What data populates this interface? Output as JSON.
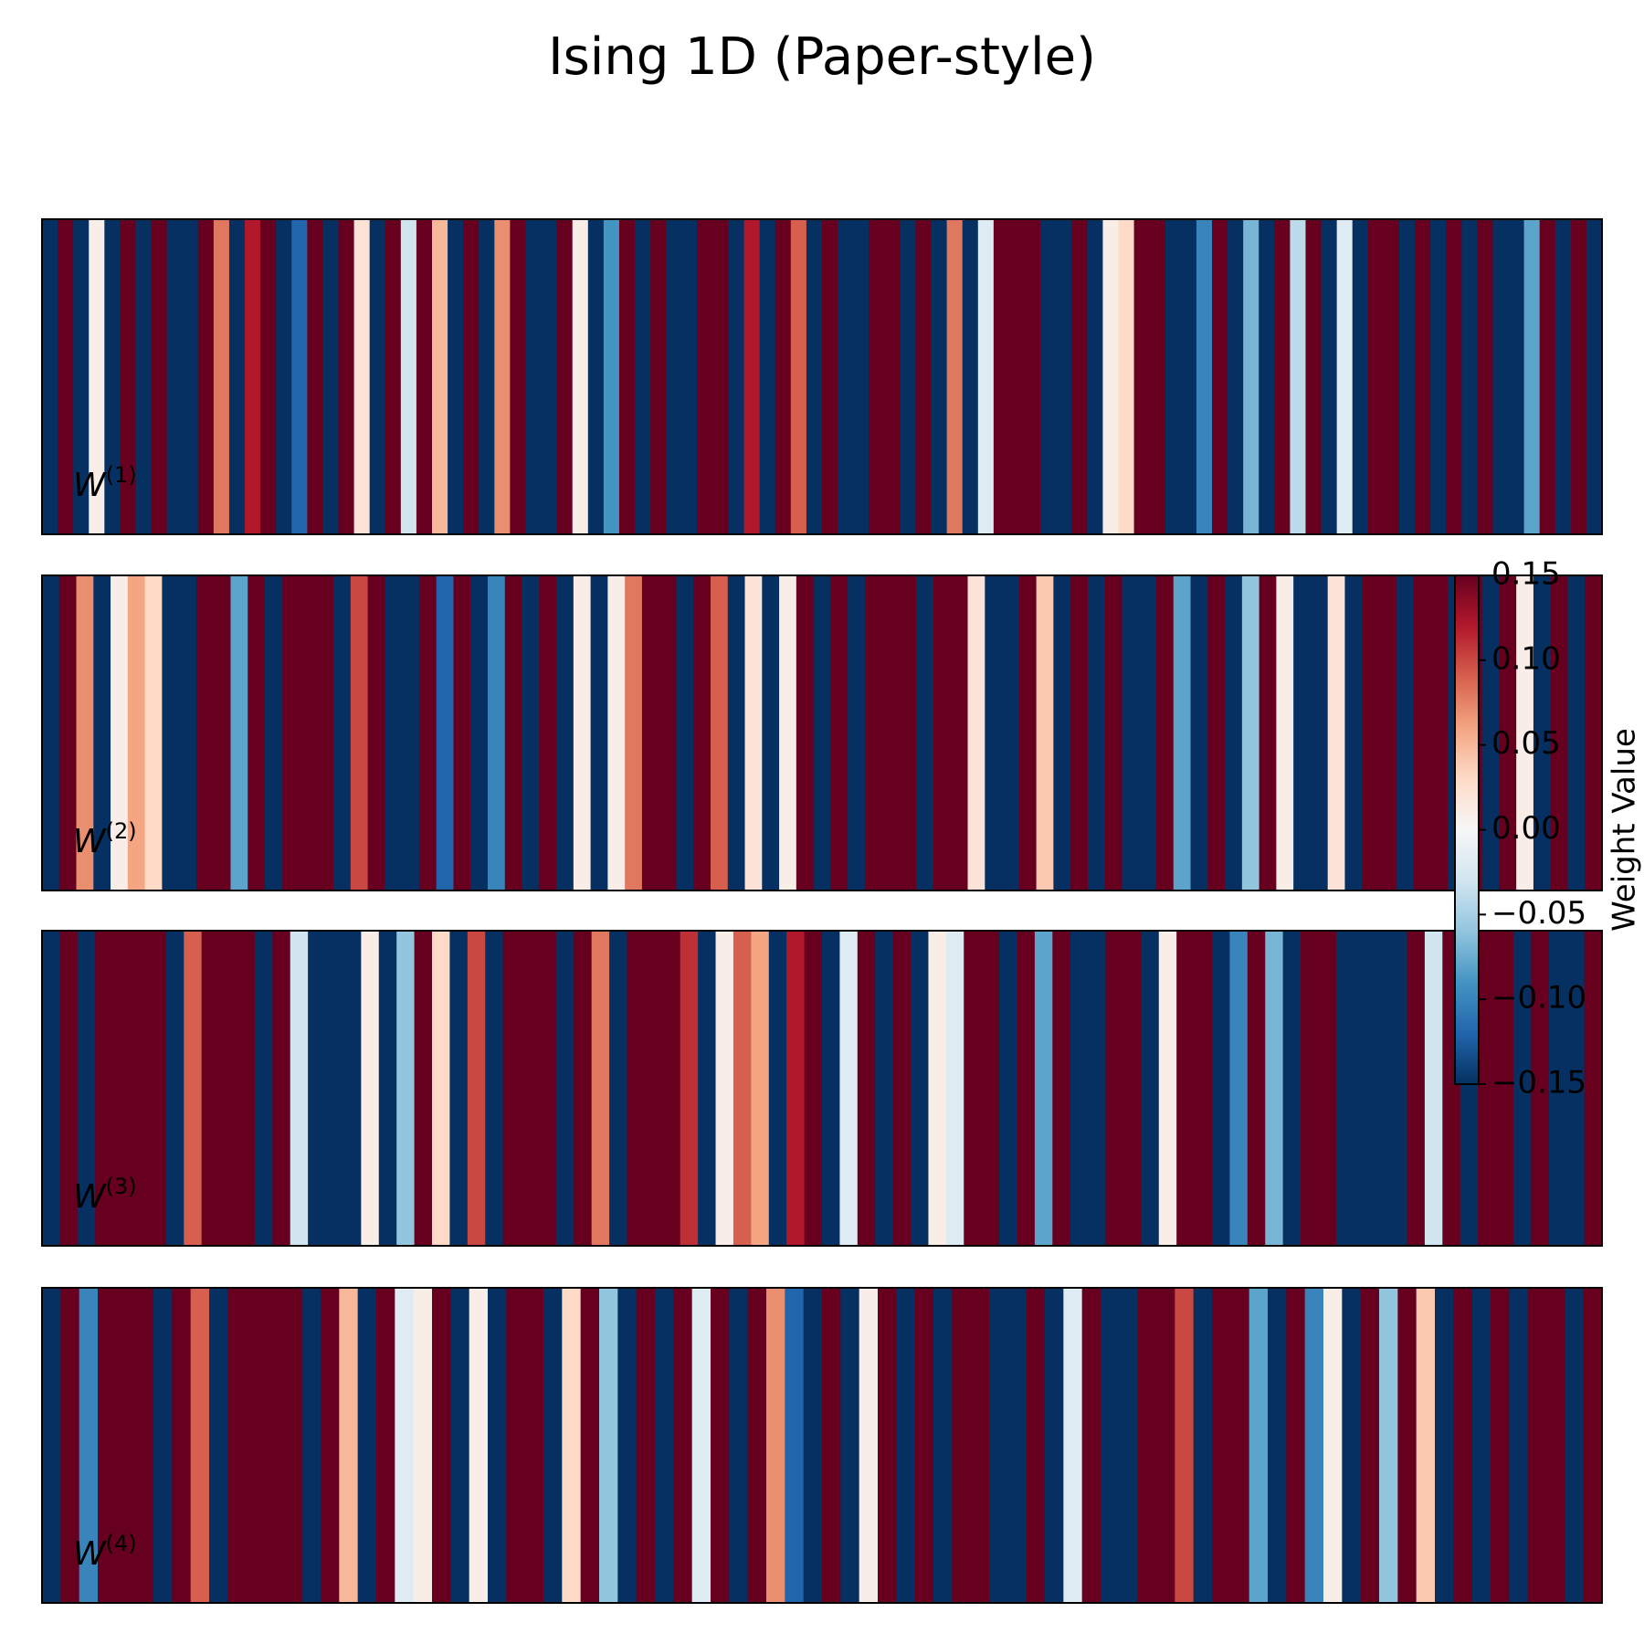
{
  "chart_data": {
    "type": "heatmap",
    "title": "Ising 1D (Paper-style)",
    "colorbar": {
      "label": "Weight Value",
      "lim": [
        -0.15,
        0.15
      ],
      "ticks": [
        0.15,
        {
          "value": 0.1,
          "label": "0.10"
        },
        {
          "value": 0.05,
          "label": "0.05"
        },
        {
          "value": 0,
          "label": "0.00"
        },
        {
          "value": -0.05,
          "label": "−0.05"
        },
        {
          "value": -0.1,
          "label": "−0.10"
        },
        {
          "value": -0.15,
          "label": "−0.15"
        }
      ],
      "cmap": [
        "#053061",
        "#2166ac",
        "#4393c3",
        "#92c5de",
        "#d1e5f0",
        "#f7f7f7",
        "#fddbc7",
        "#f4a582",
        "#d6604d",
        "#b2182b",
        "#67001f"
      ]
    },
    "panels": [
      {
        "label": "W",
        "label_sup": "(1)",
        "values": [
          -0.15,
          0.15,
          -0.15,
          0.01,
          -0.15,
          0.15,
          -0.15,
          0.15,
          -0.15,
          -0.15,
          0.15,
          0.08,
          -0.15,
          0.12,
          0.15,
          -0.15,
          -0.12,
          0.15,
          -0.15,
          0.15,
          0.02,
          -0.15,
          0.15,
          -0.03,
          0.15,
          0.05,
          -0.15,
          0.15,
          -0.15,
          0.07,
          0.15,
          -0.15,
          -0.15,
          0.15,
          0.01,
          -0.15,
          -0.09,
          0.15,
          -0.15,
          0.15,
          -0.15,
          -0.15,
          0.15,
          0.15,
          -0.15,
          0.12,
          -0.15,
          0.15,
          0.09,
          -0.15,
          0.15,
          -0.15,
          -0.15,
          0.15,
          0.15,
          -0.15,
          0.15,
          -0.15,
          0.08,
          -0.15,
          -0.02,
          0.15,
          0.15,
          0.15,
          -0.15,
          -0.15,
          0.15,
          -0.15,
          0.01,
          0.03,
          0.15,
          0.15,
          -0.15,
          -0.15,
          -0.1,
          0.15,
          -0.15,
          -0.07,
          -0.15,
          0.15,
          -0.04,
          0.15,
          -0.15,
          -0.02,
          -0.15,
          0.15,
          0.15,
          -0.15,
          0.15,
          -0.15,
          0.15,
          -0.15,
          0.15,
          -0.15,
          -0.15,
          -0.08,
          0.15,
          -0.15,
          0.15,
          -0.15
        ]
      },
      {
        "label": "W",
        "label_sup": "(2)",
        "values": [
          -0.15,
          0.15,
          0.07,
          -0.15,
          0.01,
          0.06,
          0.03,
          -0.15,
          -0.15,
          0.15,
          0.15,
          -0.08,
          0.15,
          -0.15,
          0.15,
          0.15,
          0.15,
          -0.15,
          0.1,
          0.15,
          -0.15,
          -0.15,
          0.15,
          -0.12,
          0.15,
          -0.15,
          -0.1,
          0.15,
          -0.15,
          0.15,
          -0.15,
          0.01,
          -0.15,
          0.01,
          0.08,
          0.15,
          0.15,
          -0.15,
          0.15,
          0.09,
          -0.15,
          0.02,
          -0.15,
          0.01,
          0.15,
          -0.15,
          0.15,
          -0.15,
          0.15,
          0.15,
          0.15,
          -0.15,
          0.15,
          0.15,
          0.02,
          -0.15,
          -0.15,
          0.15,
          0.04,
          -0.15,
          0.15,
          -0.15,
          0.15,
          -0.15,
          -0.15,
          0.15,
          -0.08,
          -0.15,
          0.15,
          -0.15,
          -0.06,
          0.15,
          0.01,
          -0.15,
          -0.15,
          0.02,
          -0.15,
          0.15,
          0.15,
          -0.15,
          0.15,
          0.15,
          -0.15,
          0.15,
          -0.15,
          0.15,
          0.01,
          -0.15,
          0.15,
          -0.15,
          0.15
        ]
      },
      {
        "label": "W",
        "label_sup": "(3)",
        "values": [
          -0.15,
          0.15,
          -0.15,
          0.15,
          0.15,
          0.15,
          0.15,
          -0.15,
          0.09,
          0.15,
          0.15,
          0.15,
          -0.15,
          0.15,
          -0.03,
          -0.15,
          -0.15,
          -0.15,
          0.01,
          -0.15,
          -0.06,
          0.15,
          0.03,
          -0.15,
          0.1,
          -0.15,
          0.15,
          0.15,
          0.15,
          -0.15,
          0.15,
          0.08,
          -0.15,
          0.15,
          0.15,
          0.15,
          0.11,
          -0.15,
          0.01,
          0.09,
          0.06,
          -0.15,
          0.12,
          0.15,
          -0.15,
          -0.02,
          0.15,
          -0.15,
          0.15,
          -0.15,
          0.01,
          -0.02,
          0.15,
          0.15,
          -0.15,
          0.15,
          -0.08,
          0.15,
          -0.15,
          -0.15,
          0.15,
          0.15,
          -0.15,
          0.01,
          0.15,
          0.15,
          -0.15,
          -0.1,
          0.15,
          -0.07,
          -0.15,
          0.15,
          0.15,
          -0.15,
          -0.15,
          -0.15,
          -0.15,
          0.15,
          -0.03,
          0.15,
          -0.15,
          0.15,
          0.15,
          -0.15,
          0.15,
          -0.15,
          -0.15,
          0.15
        ]
      },
      {
        "label": "W",
        "label_sup": "(4)",
        "values": [
          -0.15,
          0.15,
          -0.1,
          0.15,
          0.15,
          0.15,
          -0.15,
          0.15,
          0.09,
          -0.15,
          0.15,
          0.15,
          0.15,
          0.15,
          -0.15,
          0.15,
          0.05,
          -0.15,
          0.15,
          -0.02,
          0.01,
          0.15,
          -0.15,
          0.01,
          -0.15,
          0.15,
          0.15,
          -0.15,
          0.03,
          0.15,
          -0.06,
          -0.15,
          0.15,
          -0.15,
          0.15,
          -0.02,
          0.15,
          -0.15,
          0.15,
          0.07,
          -0.12,
          -0.15,
          0.15,
          -0.15,
          0.01,
          0.15,
          -0.15,
          0.15,
          -0.15,
          0.15,
          0.15,
          -0.15,
          -0.15,
          0.15,
          -0.15,
          -0.02,
          0.15,
          -0.15,
          -0.15,
          0.15,
          0.15,
          0.1,
          -0.15,
          0.15,
          0.15,
          -0.08,
          -0.15,
          0.15,
          -0.1,
          0.01,
          -0.15,
          0.15,
          -0.06,
          0.15,
          0.04,
          -0.15,
          0.15,
          -0.15,
          0.15,
          -0.15,
          0.15,
          0.15,
          -0.15,
          0.15
        ]
      }
    ]
  }
}
